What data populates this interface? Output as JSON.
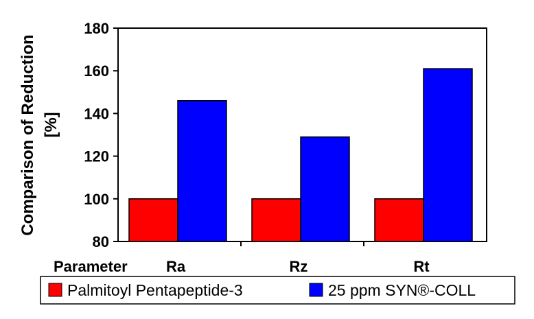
{
  "chart_data": {
    "type": "bar",
    "xlabel": "Parameter",
    "ylabel_line1": "Comparison of Reduction",
    "ylabel_line2": "[%]",
    "categories": [
      "Ra",
      "Rz",
      "Rt"
    ],
    "series": [
      {
        "name": "Palmitoyl Pentapeptide-3",
        "values": [
          100,
          100,
          100
        ],
        "color": "#ff0000"
      },
      {
        "name": "25 ppm SYN®-COLL",
        "values": [
          146,
          129,
          161
        ],
        "color": "#0000ff"
      }
    ],
    "ylim": [
      80,
      180
    ],
    "yticks": [
      "80",
      "100",
      "120",
      "140",
      "160",
      "180"
    ],
    "grid": false,
    "legend_position": "bottom"
  }
}
